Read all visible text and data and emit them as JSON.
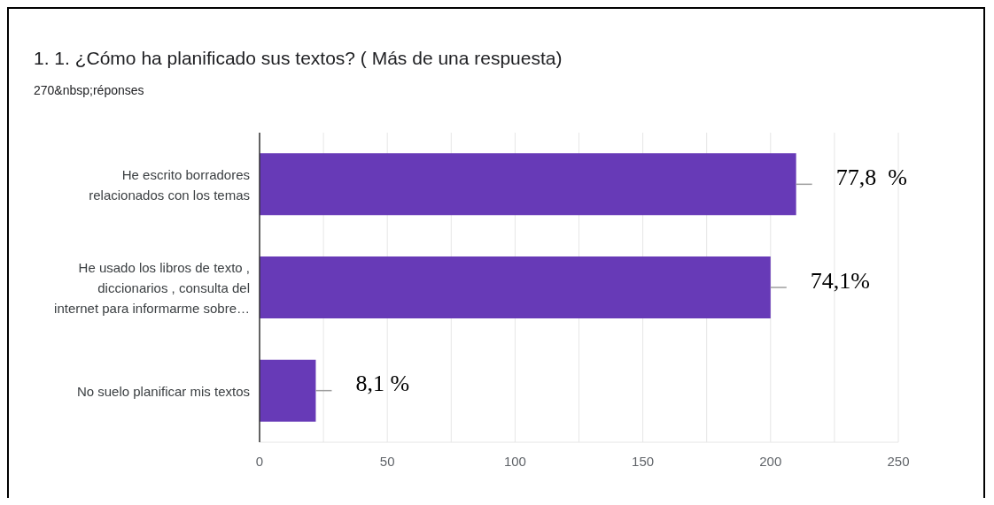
{
  "chart_data": {
    "type": "bar",
    "orientation": "horizontal",
    "title": "1. 1. ¿Cómo ha planificado sus textos? ( Más de una respuesta)",
    "subtitle": "270&nbsp;réponses",
    "categories": [
      "He escrito borradores relacionados con los temas",
      "He usado los libros de texto , diccionarios , consulta del internet para informarme sobre…",
      "No suelo planificar mis textos"
    ],
    "values": [
      210,
      200,
      22
    ],
    "annotations": [
      {
        "text": "77,8  %",
        "x": 210,
        "y": "He escrito borradores relacionados con los temas"
      },
      {
        "text": "74,1%",
        "x": 200,
        "y": "He usado los libros de texto , diccionarios , consulta del internet para informarme sobre…"
      },
      {
        "text": "8,1 %",
        "x": 22,
        "y": "No suelo planificar mis textos"
      }
    ],
    "color": "#673ab7",
    "xlim": [
      0,
      250
    ],
    "xticks": [
      0,
      {
        "value": 25,
        "label": null
      },
      50,
      {
        "value": 75,
        "label": null
      },
      100,
      {
        "value": 125,
        "label": null
      },
      150,
      {
        "value": 175,
        "label": null
      },
      200,
      {
        "value": 225,
        "label": null
      },
      250
    ],
    "grid": "x"
  }
}
